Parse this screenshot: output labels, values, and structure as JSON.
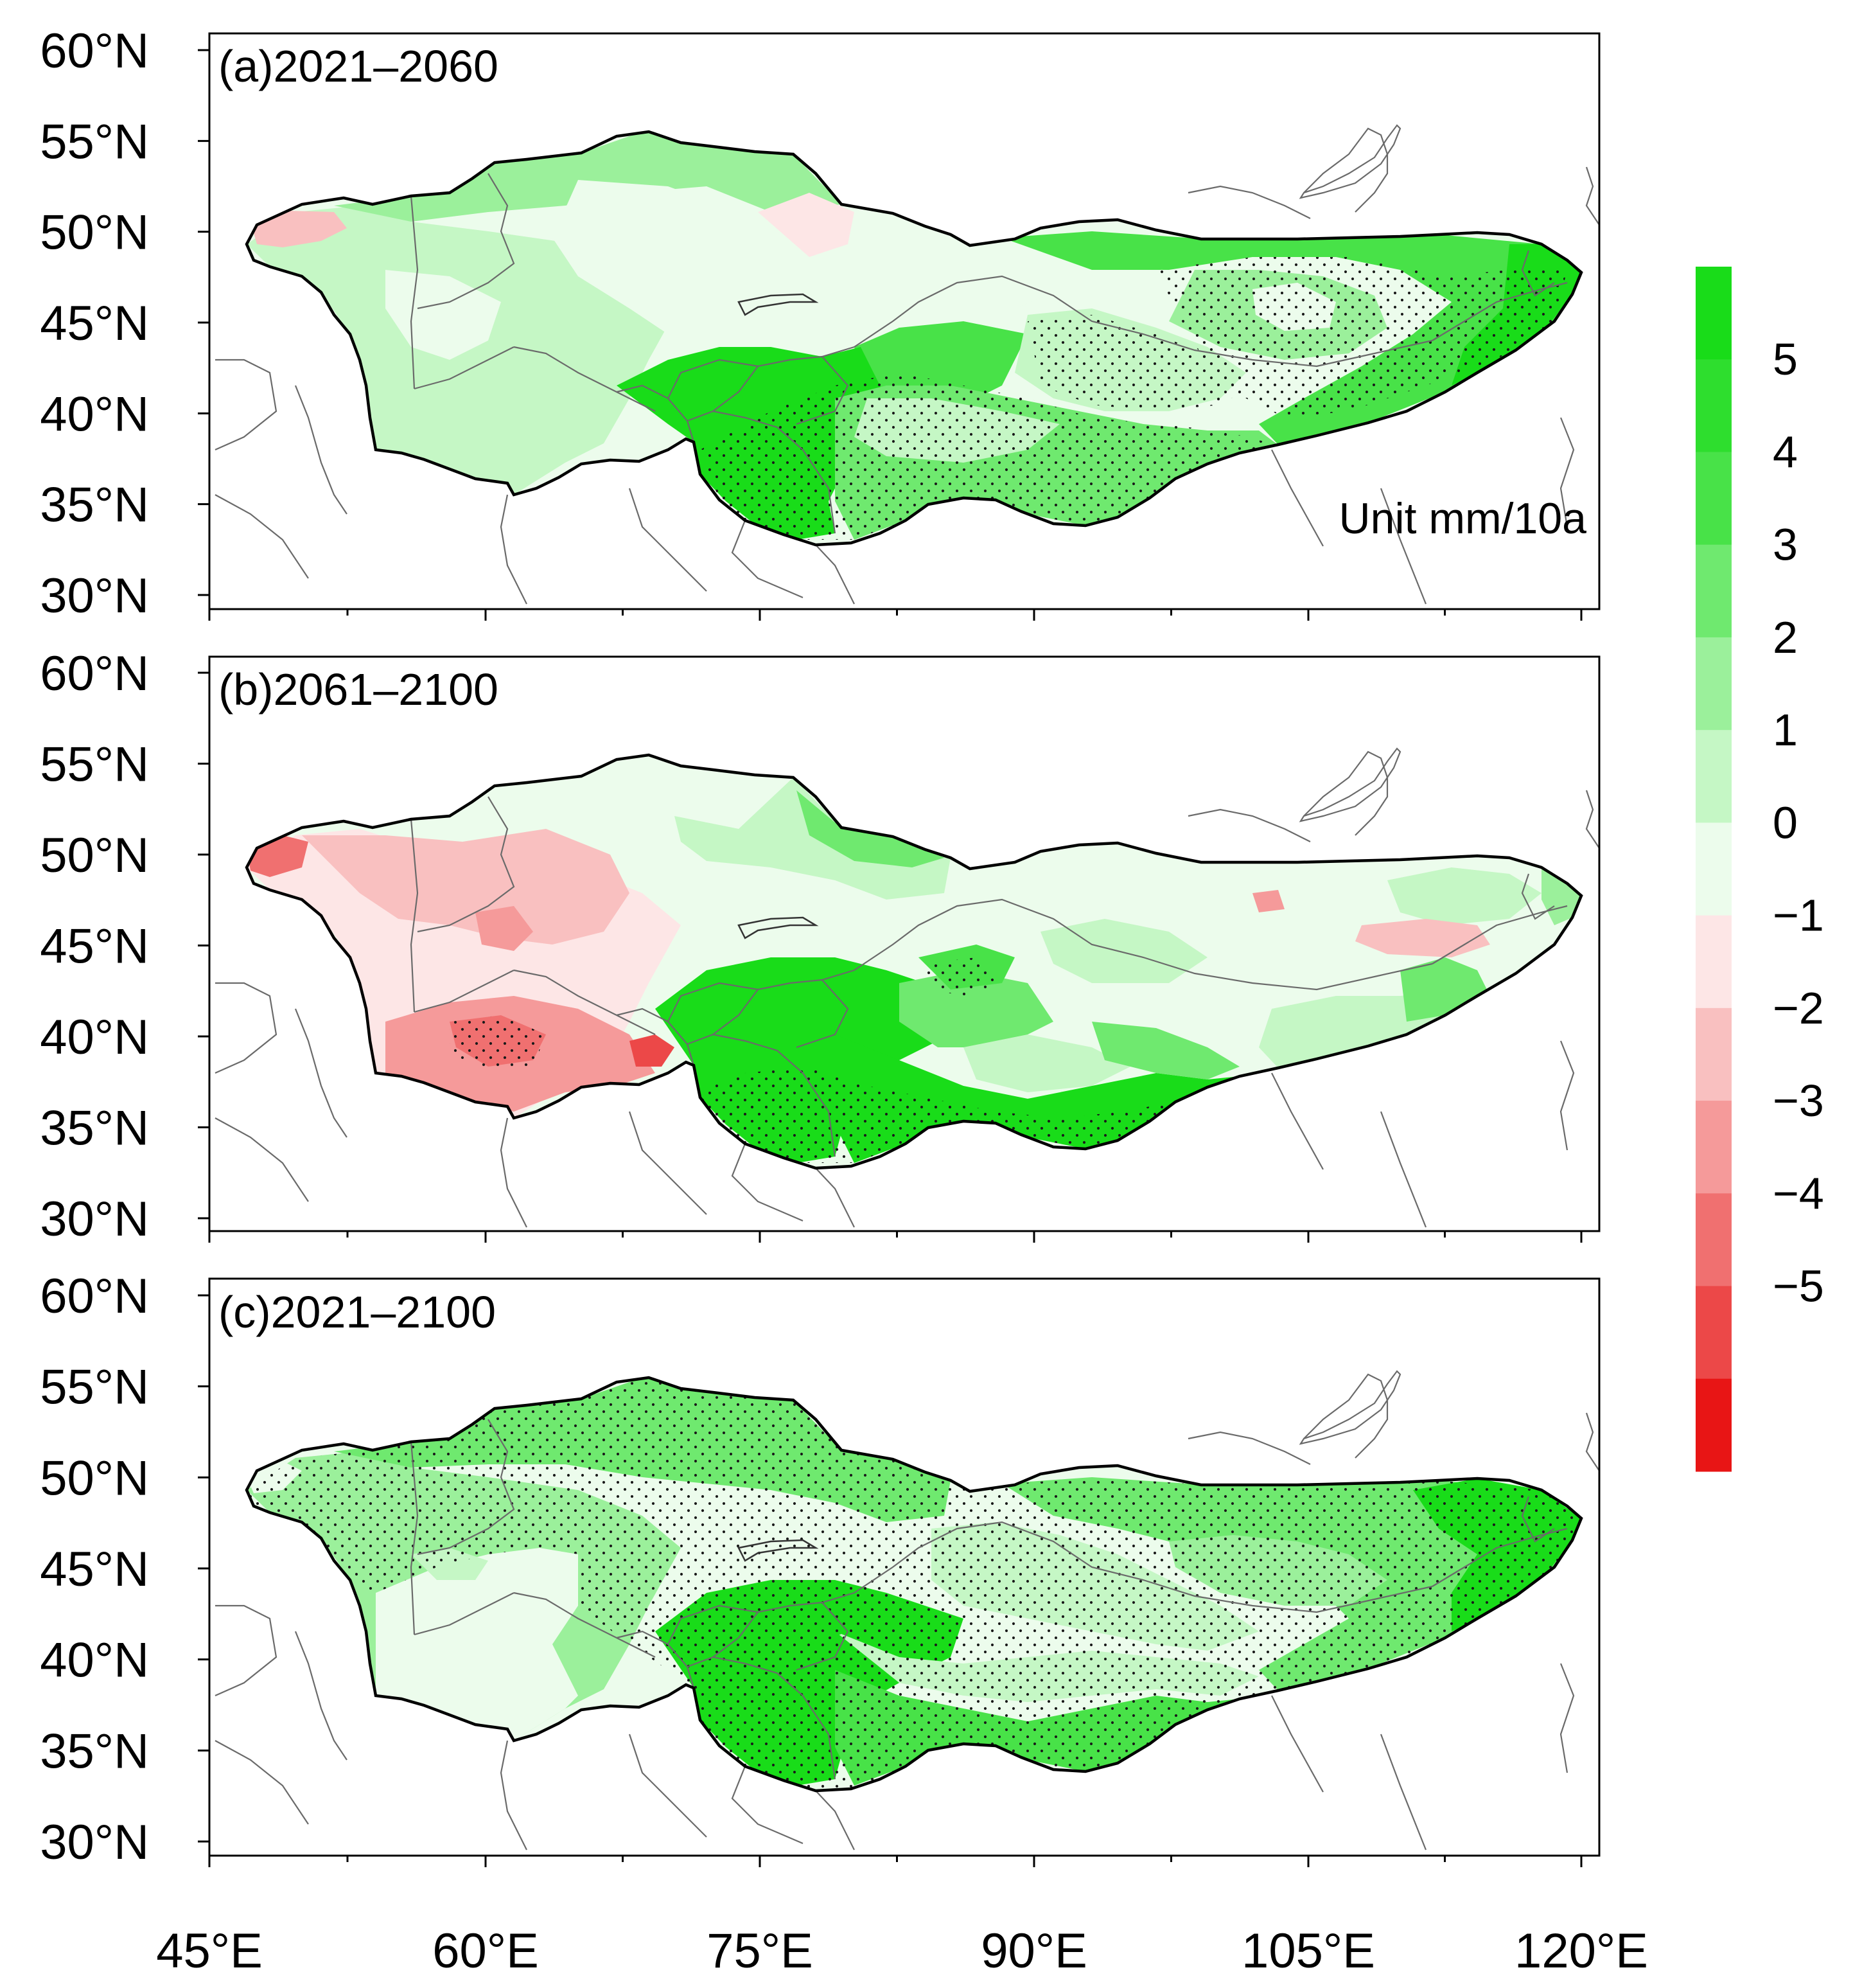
{
  "figure": {
    "unit_label": "Unit mm/10a",
    "colors": {
      "positive": [
        "#ecfcec",
        "#c5f7c5",
        "#9bf09b",
        "#6fe96f",
        "#48e248",
        "#19dc19"
      ],
      "negative": [
        "#fde6e6",
        "#f9c0c0",
        "#f59a9a",
        "#f07070",
        "#ec4848",
        "#e81515"
      ],
      "outline": "#000000",
      "borders": "#6a6a6a",
      "stipple": "#1a1a1a"
    }
  },
  "axes": {
    "lat_labels": [
      "60°N",
      "55°N",
      "50°N",
      "45°N",
      "40°N",
      "35°N",
      "30°N"
    ],
    "lon_labels": [
      "45°E",
      "60°E",
      "75°E",
      "90°E",
      "105°E",
      "120°E"
    ]
  },
  "colorbar": {
    "labels": [
      "5",
      "4",
      "3",
      "2",
      "1",
      "0",
      "−1",
      "−2",
      "−3",
      "−4",
      "−5"
    ],
    "colors": [
      "#19dc19",
      "#2ede2e",
      "#48e248",
      "#6fe96f",
      "#9bf09b",
      "#c5f7c5",
      "#ecfcec",
      "#fde6e6",
      "#f9c0c0",
      "#f59a9a",
      "#f07070",
      "#ec4848",
      "#e81515"
    ]
  },
  "panels": [
    {
      "id": "a",
      "title": "(a)2021–2060",
      "period": "2021-2060",
      "show_unit": true
    },
    {
      "id": "b",
      "title": "(b)2061–2100",
      "period": "2061-2100",
      "show_unit": false
    },
    {
      "id": "c",
      "title": "(c)2021–2100",
      "period": "2021-2100",
      "show_unit": false
    }
  ]
}
